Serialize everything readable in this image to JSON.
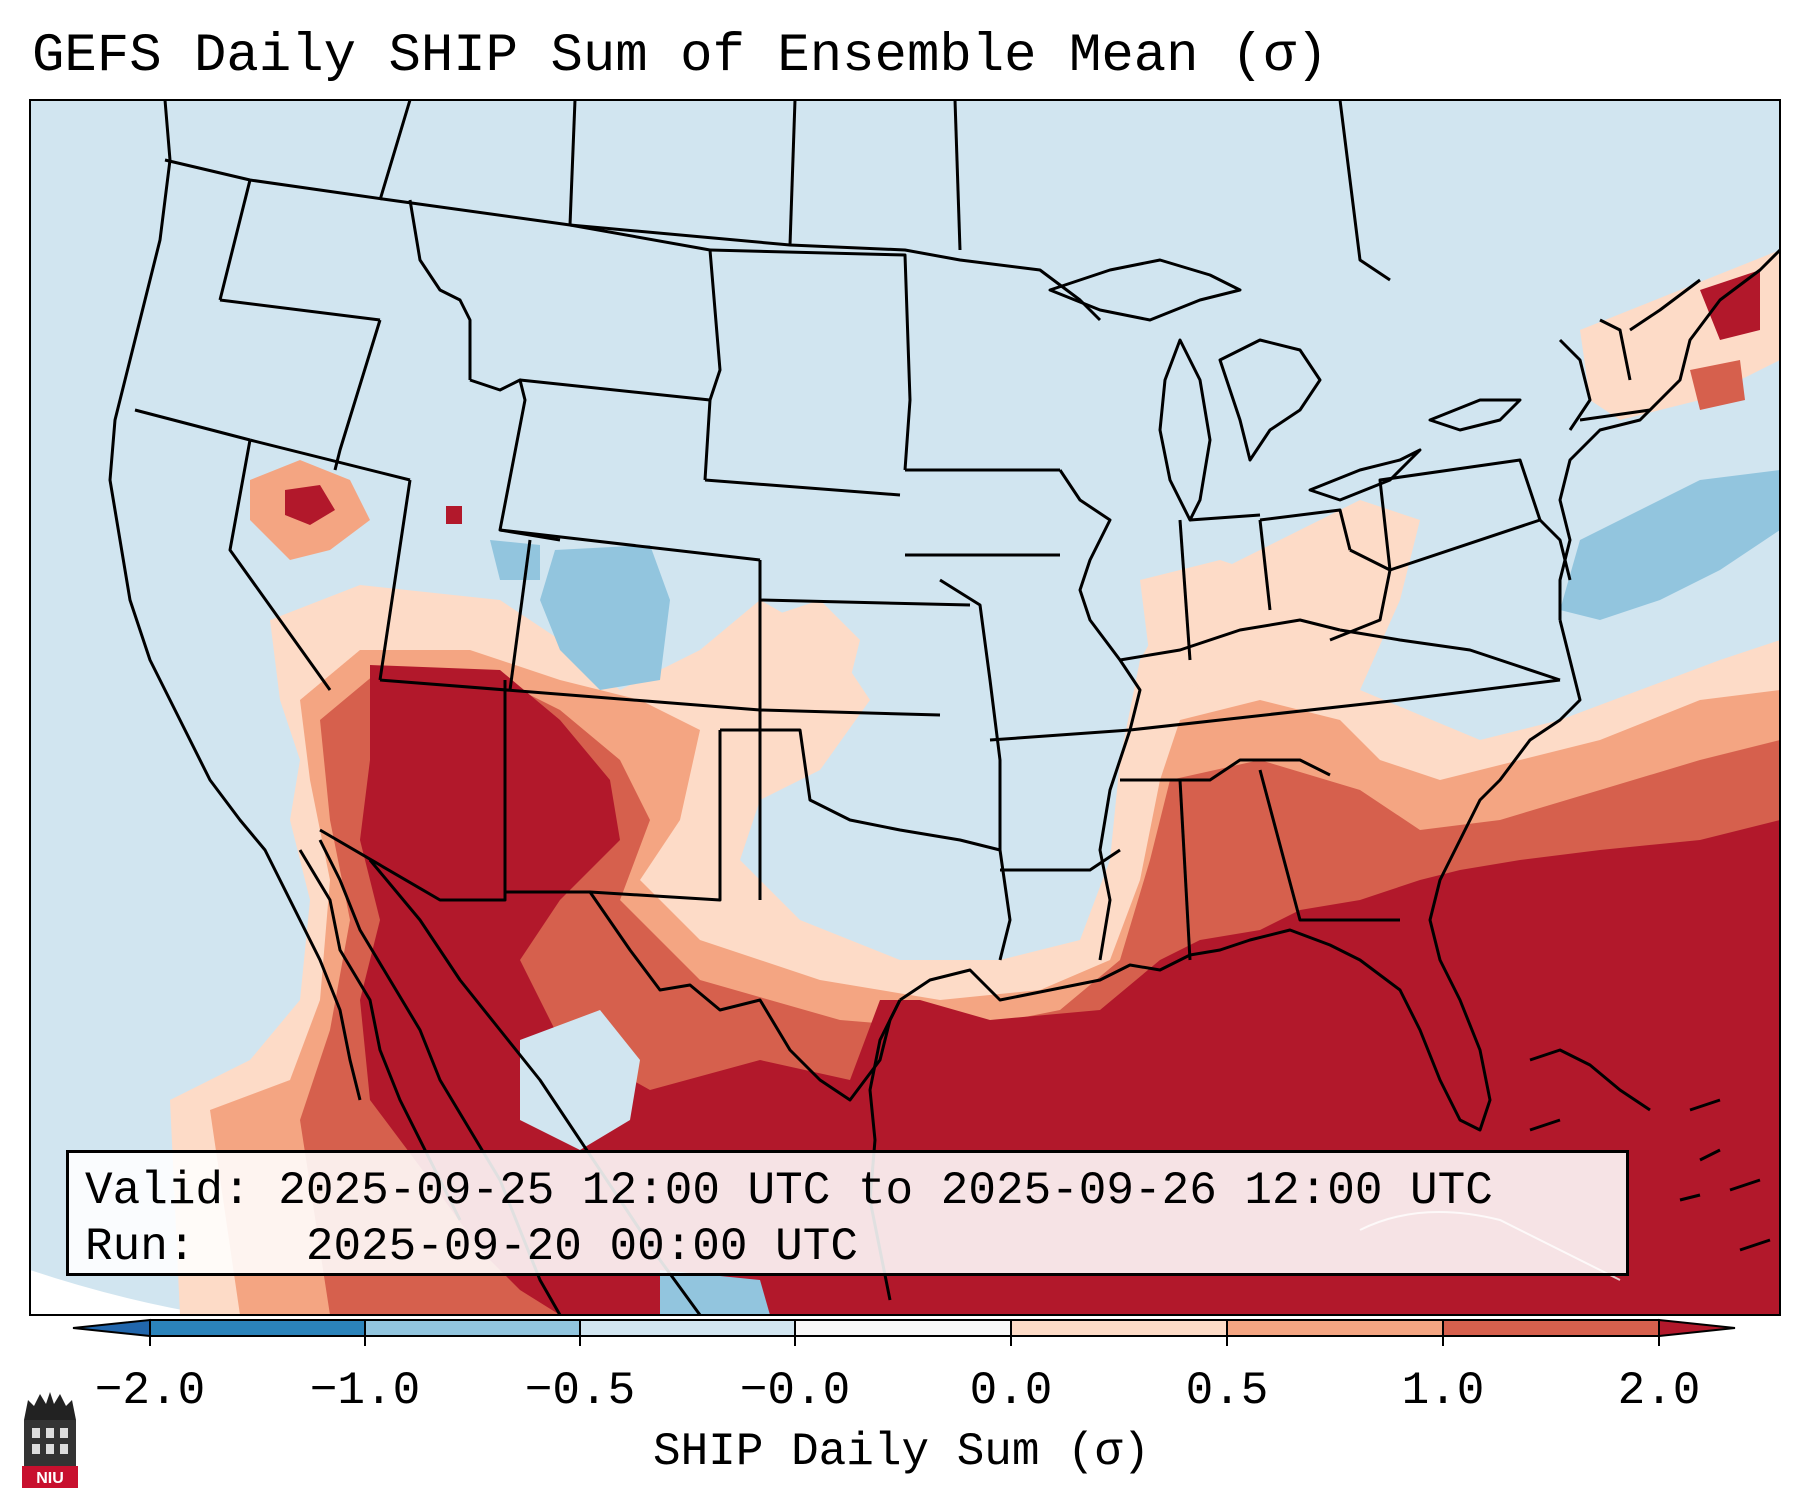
{
  "title": "GEFS Daily SHIP Sum of Ensemble Mean (σ)",
  "info": {
    "valid_label": "Valid:",
    "valid_value": "2025-09-25 12:00 UTC to 2025-09-26 12:00 UTC",
    "run_label": "Run:",
    "run_value": "2025-09-20 00:00 UTC"
  },
  "colorbar": {
    "label": "SHIP Daily Sum (σ)",
    "ticks": [
      "−2.0",
      "−1.0",
      "−0.5",
      "−0.0",
      "0.0",
      "0.5",
      "1.0",
      "2.0"
    ],
    "colors": [
      "#2b83ba",
      "#92c5de",
      "#d1e5f0",
      "#f7f7f7",
      "#fddbc7",
      "#f4a582",
      "#d6604d",
      "#b2182b"
    ],
    "extend_low_color": "#2166ac",
    "extend_high_color": "#b2182b"
  },
  "map": {
    "background_color": "#d1e5f0",
    "regions": [
      "Southwest US and Mexico",
      "Gulf of Mexico",
      "Southeast US",
      "Western Atlantic",
      "Great Basin",
      "Central Rockies",
      "Northeast US"
    ]
  },
  "logo": {
    "text": "NIU",
    "name": "niu-logo"
  }
}
